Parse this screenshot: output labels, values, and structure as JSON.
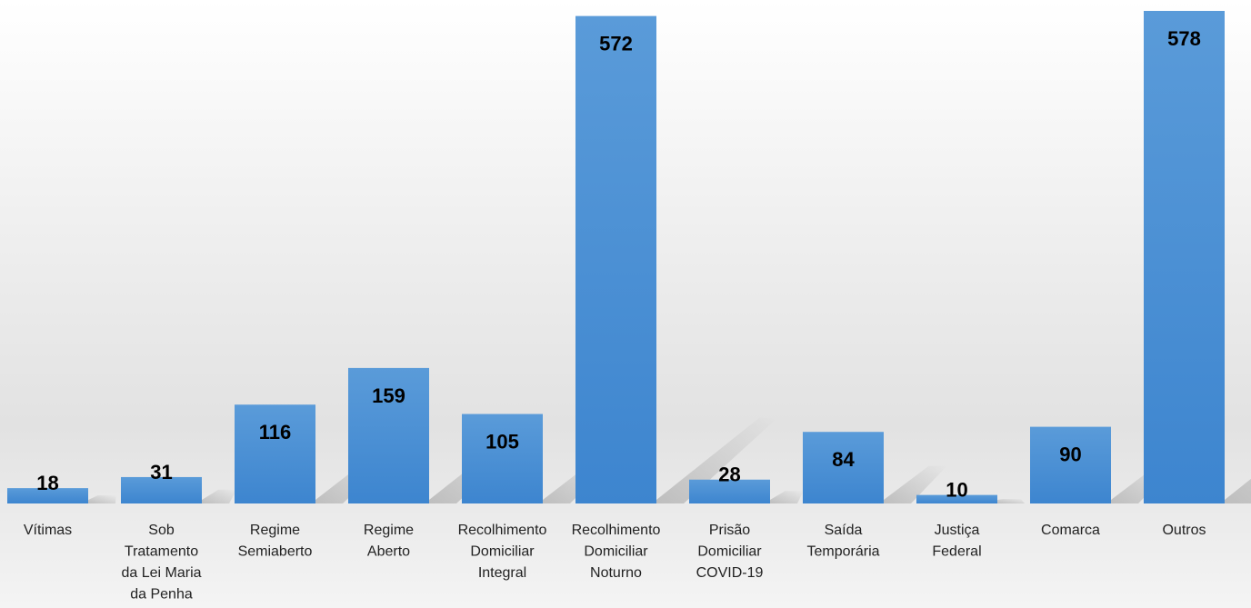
{
  "chart_data": {
    "type": "bar",
    "categories": [
      "Vítimas",
      "Sob Tratamento da Lei Maria da Penha",
      "Regime Semiaberto",
      "Regime Aberto",
      "Recolhimento Domiciliar Integral",
      "Recolhimento Domiciliar Noturno",
      "Prisão Domiciliar COVID-19",
      "Saída Temporária",
      "Justiça Federal",
      "Comarca",
      "Outros"
    ],
    "category_lines": [
      [
        "Vítimas"
      ],
      [
        "Sob",
        "Tratamento",
        "da Lei Maria",
        "da Penha"
      ],
      [
        "Regime",
        "Semiaberto"
      ],
      [
        "Regime",
        "Aberto"
      ],
      [
        "Recolhimento",
        "Domiciliar",
        "Integral"
      ],
      [
        "Recolhimento",
        "Domiciliar",
        "Noturno"
      ],
      [
        "Prisão",
        "Domiciliar",
        "COVID-19"
      ],
      [
        "Saída",
        "Temporária"
      ],
      [
        "Justiça",
        "Federal"
      ],
      [
        "Comarca"
      ],
      [
        "Outros"
      ]
    ],
    "values": [
      18,
      31,
      116,
      159,
      105,
      572,
      28,
      84,
      10,
      90,
      578
    ],
    "data_labels": [
      "18",
      "31",
      "116",
      "159",
      "105",
      "572",
      "28",
      "84",
      "10",
      "90",
      "578"
    ],
    "title": "",
    "xlabel": "",
    "ylabel": "",
    "ylim": [
      0,
      578
    ],
    "grid": false,
    "legend": "none",
    "bar_color": "#3d85cf",
    "bar_color_light": "#5a9bd9",
    "label_color": "#000000"
  }
}
